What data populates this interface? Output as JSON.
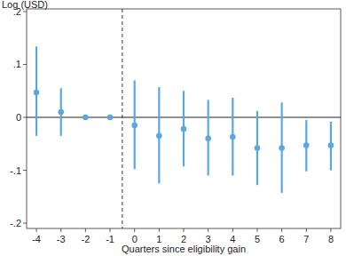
{
  "chart_data": {
    "type": "scatter",
    "y_label": "Log (USD)",
    "x_label": "Quarters since eligibility gain",
    "x": [
      -4,
      -3,
      -2,
      -1,
      0,
      1,
      2,
      3,
      4,
      5,
      6,
      7,
      8
    ],
    "values": [
      0.047,
      0.01,
      0,
      0,
      -0.015,
      -0.035,
      -0.022,
      -0.04,
      -0.037,
      -0.058,
      -0.058,
      -0.053,
      -0.053
    ],
    "lower": [
      -0.035,
      -0.035,
      null,
      null,
      -0.098,
      -0.125,
      -0.093,
      -0.11,
      -0.11,
      -0.128,
      -0.143,
      -0.102,
      -0.1
    ],
    "upper": [
      0.134,
      0.055,
      null,
      null,
      0.07,
      0.057,
      0.05,
      0.033,
      0.037,
      0.012,
      0.028,
      -0.005,
      -0.008
    ],
    "color": "#5ba8df",
    "marker": "circle",
    "reference_line_x": -0.5,
    "reference_line_y": 0,
    "xlim": [
      -4.4,
      8.4
    ],
    "ylim": [
      -0.21,
      0.205
    ],
    "xticks": [
      -4,
      -3,
      -2,
      -1,
      0,
      1,
      2,
      3,
      4,
      5,
      6,
      7,
      8
    ],
    "yticks": [
      {
        "value": -0.2,
        "label": "-.2"
      },
      {
        "value": -0.1,
        "label": "-.1"
      },
      0,
      {
        "value": 0.1,
        "label": ".1"
      },
      {
        "value": 0.2,
        "label": ".2"
      }
    ],
    "grid": false
  }
}
